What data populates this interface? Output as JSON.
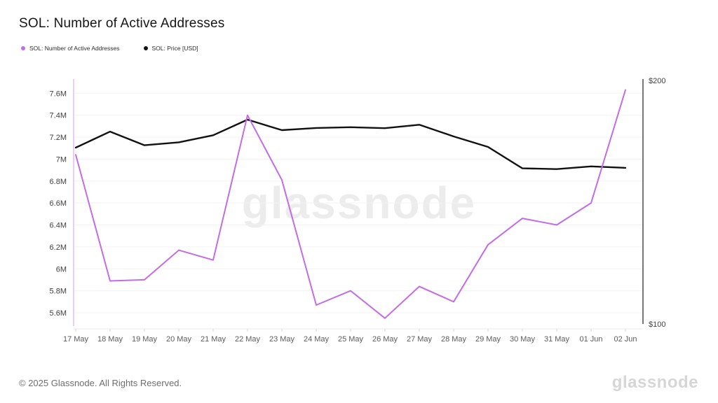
{
  "header": {
    "title": "SOL: Number of Active Addresses"
  },
  "legend": {
    "items": [
      {
        "label": "SOL: Number of Active Addresses",
        "color": "#c36ce6"
      },
      {
        "label": "SOL: Price [USD]",
        "color": "#111111"
      }
    ]
  },
  "watermark": "glassnode",
  "footer": {
    "copyright": "© 2025 Glassnode. All Rights Reserved.",
    "logo": "glassnode"
  },
  "colors": {
    "active_addresses_line": "#c36ce6",
    "price_line": "#111111",
    "left_axis_line": "#dcb4ec",
    "right_axis_line": "#777777",
    "grid_line": "#f5f0f5",
    "x_baseline": "#f0e4ef",
    "x_tick": "#dccfdc",
    "y_label": "#3f3f3f",
    "x_label": "#5b5b5b"
  },
  "chart_data": {
    "type": "line",
    "title": "SOL: Number of Active Addresses",
    "grid": "horizontal",
    "legend_position": "top-left",
    "categories": [
      "17 May",
      "18 May",
      "19 May",
      "20 May",
      "21 May",
      "22 May",
      "23 May",
      "24 May",
      "25 May",
      "26 May",
      "27 May",
      "28 May",
      "29 May",
      "30 May",
      "31 May",
      "01 Jun",
      "02 Jun"
    ],
    "series": [
      {
        "name": "SOL: Number of Active Addresses",
        "axis": "left",
        "unit": "addresses (millions)",
        "color": "#c36ce6",
        "values_millions": [
          7.04,
          5.89,
          5.9,
          6.17,
          6.08,
          7.4,
          6.81,
          5.67,
          5.8,
          5.55,
          5.84,
          5.7,
          6.22,
          6.46,
          6.4,
          6.6,
          7.63
        ]
      },
      {
        "name": "SOL: Price [USD]",
        "axis": "right",
        "unit": "USD",
        "color": "#111111",
        "values_usd": [
          172.4,
          179.0,
          173.4,
          174.6,
          177.5,
          183.9,
          179.6,
          180.5,
          180.8,
          180.4,
          181.8,
          177.0,
          172.7,
          163.9,
          163.6,
          164.7,
          164.1
        ]
      }
    ],
    "left_axis": {
      "labels": [
        "7.6M",
        "7.4M",
        "7.2M",
        "7M",
        "6.8M",
        "6.6M",
        "6.4M",
        "6.2M",
        "6M",
        "5.8M",
        "5.6M"
      ],
      "values_millions": [
        7.6,
        7.4,
        7.2,
        7.0,
        6.8,
        6.6,
        6.4,
        6.2,
        6.0,
        5.8,
        5.6
      ],
      "range_millions": [
        5.6,
        7.6
      ]
    },
    "right_axis": {
      "labels": [
        "$200",
        "$100"
      ],
      "values_usd": [
        200,
        100
      ],
      "range_usd": [
        100,
        200
      ]
    }
  }
}
